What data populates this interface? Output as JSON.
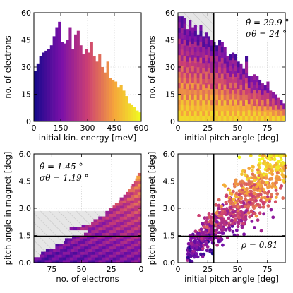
{
  "chart_data": [
    {
      "type": "bar",
      "position": "top-left",
      "xlabel": "initial kin. energy [meV]",
      "ylabel": "no. of electrons",
      "xlim": [
        0,
        600
      ],
      "ylim": [
        0,
        60
      ],
      "xticks": [
        "0",
        "150",
        "300",
        "450",
        "600"
      ],
      "yticks": [
        "0",
        "15",
        "30",
        "45",
        "60"
      ],
      "bin_width": 15,
      "values": [
        28,
        32,
        36,
        38,
        39,
        40,
        42,
        47,
        52,
        55,
        44,
        43,
        45,
        52,
        40,
        48,
        50,
        42,
        37,
        40,
        38,
        44,
        36,
        33,
        37,
        30,
        27,
        33,
        24,
        23,
        22,
        19,
        20,
        17,
        14,
        10,
        9,
        8,
        6,
        5
      ],
      "colormap": [
        "#1a0a8c",
        "#7b10a8",
        "#cc3f73",
        "#f5a33c",
        "#f0f921"
      ]
    },
    {
      "type": "bar",
      "position": "top-right",
      "xlabel": "initial pitch angle [deg]",
      "ylabel": "no. of electrons",
      "xlim": [
        0,
        90
      ],
      "ylim": [
        0,
        60
      ],
      "xticks": [
        "0",
        "25",
        "50",
        "75"
      ],
      "yticks": [
        "0",
        "15",
        "30",
        "45",
        "60"
      ],
      "bin_width": 2.25,
      "values": [
        58,
        58,
        57,
        51,
        56,
        52,
        53,
        48,
        53,
        47,
        49,
        47,
        45,
        44,
        42,
        45,
        44,
        41,
        36,
        37,
        38,
        37,
        33,
        32,
        29,
        36,
        25,
        25,
        26,
        25,
        23,
        21,
        20,
        22,
        17,
        16,
        15,
        13,
        12,
        10
      ],
      "mean_line": 29.9,
      "shaded_region": [
        0,
        29.9
      ],
      "annotation": [
        "θ̂ = 29.9 °",
        "σθ = 24 °"
      ]
    },
    {
      "type": "bar",
      "orientation": "horizontal",
      "position": "bottom-left",
      "xlabel": "no. of electrons",
      "ylabel": "pitch angle in magnet [deg]",
      "xlim": [
        90,
        0
      ],
      "ylim": [
        0,
        6.0
      ],
      "xticks": [
        "75",
        "50",
        "25",
        "0"
      ],
      "yticks": [
        "0.0",
        "1.5",
        "3.0",
        "4.5",
        "6.0"
      ],
      "bin_width": 0.15,
      "values": [
        90,
        90,
        85,
        84,
        80,
        72,
        72,
        65,
        64,
        58,
        48,
        45,
        60,
        50,
        42,
        40,
        36,
        30,
        30,
        27,
        24,
        22,
        19,
        18,
        15,
        13,
        11,
        9,
        8,
        6,
        5,
        4,
        3
      ],
      "mean_line": 1.45,
      "shaded_region": [
        0,
        2.85
      ],
      "annotation": [
        "θ̂ = 1.45 °",
        "σθ = 1.19 °"
      ]
    },
    {
      "type": "scatter",
      "position": "bottom-right",
      "xlabel": "initial pitch angle [deg]",
      "ylabel": "pitch angle in magnet [deg]",
      "xlim": [
        0,
        90
      ],
      "ylim": [
        0,
        6.0
      ],
      "xticks": [
        "0",
        "25",
        "50",
        "75"
      ],
      "yticks": [
        "0.0",
        "1.5",
        "3.0",
        "4.5",
        "6.0"
      ],
      "vline": 29.9,
      "hline": 1.45,
      "correlation": "ρ = 0.81",
      "n_points": 800
    }
  ]
}
